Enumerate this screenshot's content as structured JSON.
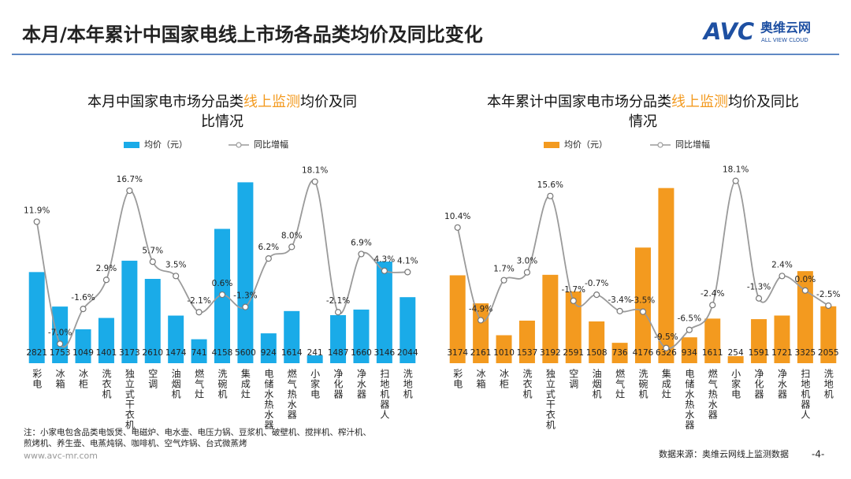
{
  "header": {
    "title": "本月/本年累计中国家电线上市场各品类均价及同比变化"
  },
  "logo": {
    "mark": "AVC",
    "name": "奥维云网",
    "tagline": "ALL VIEW CLOUD"
  },
  "chart_data": [
    {
      "type": "combo",
      "title_parts": [
        "本月中国家电市场分品类",
        "线上监测",
        "均价及同比情况"
      ],
      "highlight_color": "#F39A1F",
      "categories": [
        "彩电",
        "冰箱",
        "冰柜",
        "洗衣机",
        "独立式干衣机",
        "空调",
        "油烟机",
        "燃气灶",
        "洗碗机",
        "集成灶",
        "电储水热水器",
        "燃气热水器",
        "小家电",
        "净化器",
        "净水器",
        "扫地机器人",
        "洗地机"
      ],
      "series": [
        {
          "name": "均价（元）",
          "type": "bar",
          "color": "#1AABE8",
          "values": [
            2821,
            1753,
            1049,
            1401,
            3173,
            2610,
            1474,
            741,
            4158,
            5600,
            924,
            1614,
            241,
            1487,
            1660,
            3146,
            2044
          ]
        },
        {
          "name": "同比增幅",
          "type": "line",
          "axis": "y2",
          "color": "#9a9a9a",
          "values": [
            11.9,
            -7.0,
            -1.6,
            2.9,
            16.7,
            5.7,
            3.5,
            -2.1,
            0.6,
            -1.3,
            6.2,
            8.0,
            18.1,
            -2.1,
            6.9,
            4.3,
            4.1
          ],
          "value_labels": [
            "11.9%",
            "-7.0%",
            "-1.6%",
            "2.9%",
            "16.7%",
            "5.7%",
            "3.5%",
            "-2.1%",
            "0.6%",
            "-1.3%",
            "6.2%",
            "8.0%",
            "18.1%",
            "-2.1%",
            "6.9%",
            "4.3%",
            "4.1%"
          ]
        }
      ],
      "ylim": [
        0,
        6000
      ],
      "y2lim": [
        -10,
        20
      ]
    },
    {
      "type": "combo",
      "title_parts": [
        "本年累计中国家电市场分品类",
        "线上监测",
        "均价及同比情况"
      ],
      "highlight_color": "#F39A1F",
      "categories": [
        "彩电",
        "冰箱",
        "冰柜",
        "洗衣机",
        "独立式干衣机",
        "空调",
        "油烟机",
        "燃气灶",
        "洗碗机",
        "集成灶",
        "电储水热水器",
        "燃气热水器",
        "小家电",
        "净化器",
        "净水器",
        "扫地机器人",
        "洗地机"
      ],
      "series": [
        {
          "name": "均价（元）",
          "type": "bar",
          "color": "#F39A1F",
          "values": [
            3174,
            2161,
            1010,
            1537,
            3192,
            2591,
            1508,
            736,
            4176,
            6326,
            934,
            1611,
            254,
            1591,
            1721,
            3325,
            2055
          ]
        },
        {
          "name": "同比增幅",
          "type": "line",
          "axis": "y2",
          "color": "#9a9a9a",
          "values": [
            10.4,
            -4.9,
            1.7,
            3.0,
            15.6,
            -1.7,
            -0.7,
            -3.4,
            -3.5,
            -9.5,
            -6.5,
            -2.4,
            18.1,
            -1.3,
            2.4,
            0.0,
            -2.5
          ],
          "value_labels": [
            "10.4%",
            "-4.9%",
            "1.7%",
            "3.0%",
            "15.6%",
            "-1.7%",
            "-0.7%",
            "-3.4%",
            "-3.5%",
            "-9.5%",
            "-6.5%",
            "-2.4%",
            "18.1%",
            "-1.3%",
            "2.4%",
            "0.0%",
            "-2.5%"
          ]
        }
      ],
      "ylim": [
        0,
        7000
      ],
      "y2lim": [
        -12,
        20
      ]
    }
  ],
  "footer": {
    "note": [
      "注：小家电包含品类电饭煲、电磁炉、电水壶、电压力锅、豆浆机、破壁机、搅拌机、榨汁机、",
      "煎烤机、养生壶、电蒸炖锅、咖啡机、空气炸锅、台式微蒸烤"
    ],
    "website": "www.avc-mr.com",
    "source": "数据来源：奥维云网线上监测数据",
    "page": "-4-"
  }
}
